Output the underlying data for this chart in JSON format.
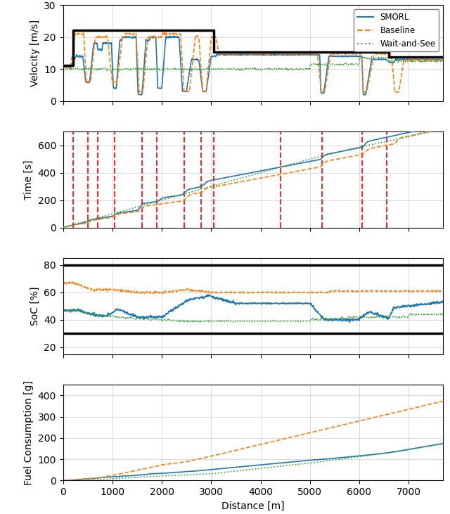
{
  "x_label": "Distance [m]",
  "x_max": 7700,
  "x_ticks": [
    0,
    1000,
    2000,
    3000,
    4000,
    5000,
    6000,
    7000
  ],
  "speed_limit_x": [
    0,
    200,
    200,
    3050,
    3050,
    6600,
    6600,
    7700
  ],
  "speed_limit_y": [
    11.11,
    11.11,
    22.22,
    22.22,
    15.28,
    15.28,
    13.89,
    13.89
  ],
  "red_vlines": [
    200,
    500,
    700,
    1050,
    1600,
    1900,
    2450,
    2800,
    3050,
    4400,
    5250,
    6050,
    6550
  ],
  "colors": {
    "smorl": "#1f77b4",
    "baseline": "#ff7f0e",
    "wait_and_see": "#2ca02c",
    "speed_limit": "black",
    "red_dashed": "red"
  },
  "panel1": {
    "ylabel": "Velocity [m/s]",
    "ylim": [
      0,
      30
    ],
    "yticks": [
      0,
      10,
      20,
      30
    ]
  },
  "panel2": {
    "ylabel": "Time [s]",
    "ylim": [
      0,
      700
    ],
    "yticks": [
      0,
      200,
      400,
      600
    ]
  },
  "panel3": {
    "ylabel": "SoC [%]",
    "ylim": [
      15,
      85
    ],
    "yticks": [
      20,
      40,
      60,
      80
    ],
    "hline_upper": 80,
    "hline_lower": 30
  },
  "panel4": {
    "ylabel": "Fuel Consumption [g]",
    "ylim": [
      0,
      450
    ],
    "yticks": [
      0,
      100,
      200,
      300,
      400
    ]
  },
  "legend_labels": [
    "SMORL",
    "Baseline",
    "Wait-and-See"
  ]
}
